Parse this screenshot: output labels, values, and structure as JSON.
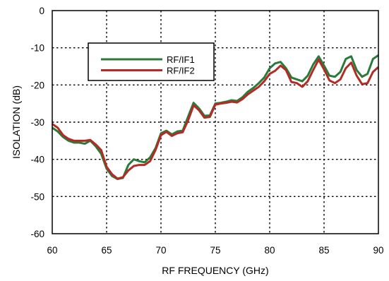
{
  "chart_data": {
    "type": "line",
    "xlabel": "RF FREQUENCY (GHz)",
    "ylabel": "ISOLATION (dB)",
    "xlim": [
      60,
      90
    ],
    "ylim": [
      -60,
      0
    ],
    "xticks": [
      60,
      65,
      70,
      75,
      80,
      85,
      90
    ],
    "yticks": [
      0,
      -10,
      -20,
      -30,
      -40,
      -50,
      -60
    ],
    "grid": true,
    "legend_position": "top-left",
    "series": [
      {
        "name": "RF/IF1",
        "color": "#2a7a3a",
        "x": [
          60,
          60.5,
          61,
          61.5,
          62,
          62.5,
          63,
          63.5,
          64,
          64.5,
          65,
          65.5,
          66,
          66.5,
          67,
          67.5,
          68,
          68.5,
          69,
          69.5,
          70,
          70.5,
          71,
          71.5,
          72,
          72.5,
          73,
          73.5,
          74,
          74.5,
          75,
          75.5,
          76,
          76.5,
          77,
          77.5,
          78,
          78.5,
          79,
          79.5,
          80,
          80.5,
          81,
          81.5,
          82,
          82.5,
          83,
          83.5,
          84,
          84.5,
          85,
          85.5,
          86,
          86.5,
          87,
          87.5,
          88,
          88.5,
          89,
          89.5,
          90
        ],
        "values": [
          -31.5,
          -32.5,
          -34,
          -35,
          -35.5,
          -35.5,
          -35.8,
          -35,
          -36.5,
          -38.5,
          -42.5,
          -44.5,
          -45.3,
          -45,
          -41.5,
          -40,
          -40.5,
          -40.8,
          -39.5,
          -37,
          -33,
          -32.3,
          -33.3,
          -32.5,
          -32.3,
          -28.5,
          -24.8,
          -26.3,
          -28.3,
          -28.2,
          -25,
          -24.8,
          -24.5,
          -24.1,
          -24.3,
          -23.3,
          -21.8,
          -20.8,
          -19.5,
          -18,
          -15.5,
          -14.2,
          -13.8,
          -15.5,
          -18,
          -18.5,
          -19,
          -17.5,
          -14.5,
          -12.3,
          -14.8,
          -17.5,
          -17.8,
          -16.5,
          -13,
          -12.3,
          -16,
          -17.8,
          -17,
          -13,
          -12
        ]
      },
      {
        "name": "RF/IF2",
        "color": "#b42a25",
        "x": [
          60,
          60.5,
          61,
          61.5,
          62,
          62.5,
          63,
          63.5,
          64,
          64.5,
          65,
          65.5,
          66,
          66.5,
          67,
          67.5,
          68,
          68.5,
          69,
          69.5,
          70,
          70.5,
          71,
          71.5,
          72,
          72.5,
          73,
          73.5,
          74,
          74.5,
          75,
          75.5,
          76,
          76.5,
          77,
          77.5,
          78,
          78.5,
          79,
          79.5,
          80,
          80.5,
          81,
          81.5,
          82,
          82.5,
          83,
          83.5,
          84,
          84.5,
          85,
          85.5,
          86,
          86.5,
          87,
          87.5,
          88,
          88.5,
          89,
          89.5,
          90
        ],
        "values": [
          -30.5,
          -31.5,
          -33.5,
          -34.5,
          -35,
          -35,
          -35,
          -34.8,
          -36,
          -37.5,
          -42,
          -44,
          -45.2,
          -44.8,
          -43,
          -41.8,
          -41.5,
          -41.5,
          -40.5,
          -37.5,
          -33.5,
          -32.6,
          -33.7,
          -33,
          -32.7,
          -29.5,
          -25.5,
          -26.8,
          -28.8,
          -28.6,
          -25.3,
          -25,
          -24.8,
          -24.5,
          -24.7,
          -23.8,
          -22.5,
          -21.5,
          -20.5,
          -19,
          -17,
          -16.2,
          -14.8,
          -16,
          -19.2,
          -19.5,
          -20.5,
          -19,
          -16,
          -13.2,
          -15.8,
          -18.8,
          -19.5,
          -18.5,
          -15.5,
          -14,
          -17.5,
          -19.8,
          -19.5,
          -16.5,
          -15.2
        ]
      }
    ]
  }
}
